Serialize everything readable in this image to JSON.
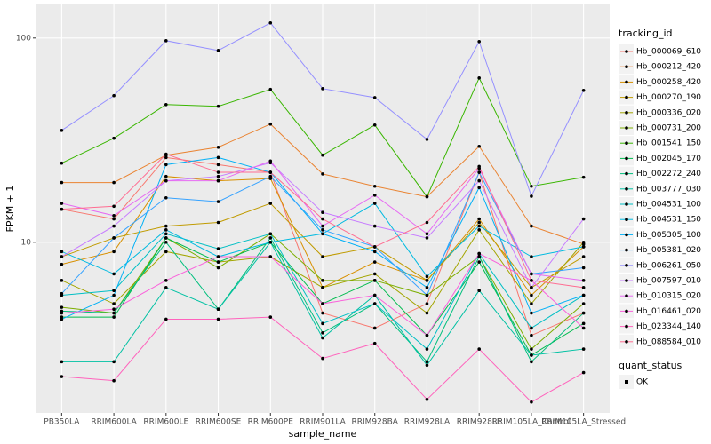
{
  "chart_data": {
    "type": "line",
    "x_label": "sample_name",
    "y_label": "FPKM + 1",
    "log_y": true,
    "grid": true,
    "legend_title": "tracking_id",
    "legend_position": "right",
    "point_legend_title": "quant_status",
    "point_legend_label": "OK",
    "point_color": "#000000",
    "ylim": [
      1.46,
      146
    ],
    "yticks": [
      10,
      100
    ],
    "categories": [
      "PB350LA",
      "RRIM600LA",
      "RRIM600LE",
      "RRIM600SE",
      "RRIM600PE",
      "RRIM901LA",
      "RRIM928BA",
      "RRIM928LA",
      "RRIM928LE",
      "RRIM105LA_Control",
      "RRIM105LA_Stressed"
    ],
    "series": [
      {
        "name": "Hb_000069_610",
        "color": "#F8766D",
        "values": [
          14.5,
          13,
          26,
          24,
          22,
          4.5,
          3.8,
          5,
          22,
          3.5,
          4.5
        ]
      },
      {
        "name": "Hb_000212_420",
        "color": "#EA8331",
        "values": [
          19.6,
          19.6,
          26.7,
          29.2,
          37.9,
          21.6,
          18.8,
          16.7,
          29.5,
          12,
          9.8
        ]
      },
      {
        "name": "Hb_000258_420",
        "color": "#D89000",
        "values": [
          7.8,
          9,
          21,
          20,
          20.5,
          6,
          8,
          6.5,
          13,
          5.5,
          9.5
        ]
      },
      {
        "name": "Hb_000270_190",
        "color": "#C09B00",
        "values": [
          8.5,
          10.5,
          12,
          12.5,
          15.5,
          8.5,
          9.5,
          6.5,
          12.5,
          6,
          8.5
        ]
      },
      {
        "name": "Hb_000336_020",
        "color": "#A3A500",
        "values": [
          6.5,
          5,
          9,
          8,
          8.5,
          6,
          7,
          4.5,
          11.5,
          5,
          10
        ]
      },
      {
        "name": "Hb_000731_200",
        "color": "#7CAE00",
        "values": [
          4.8,
          4.5,
          10.5,
          7.5,
          11,
          6.5,
          6.5,
          5.5,
          8.5,
          3,
          5
        ]
      },
      {
        "name": "Hb_001541_150",
        "color": "#39B600",
        "values": [
          24.4,
          32.3,
          47.2,
          46.3,
          56,
          26.7,
          37.5,
          16.7,
          63.7,
          18.8,
          20.8
        ]
      },
      {
        "name": "Hb_002045_170",
        "color": "#00BB4E",
        "values": [
          4.3,
          4.3,
          10.5,
          8,
          10,
          5,
          6.5,
          3.5,
          8,
          2.8,
          4
        ]
      },
      {
        "name": "Hb_002272_240",
        "color": "#00BF7D",
        "values": [
          4.6,
          4.5,
          10,
          4.7,
          10.5,
          3.6,
          5,
          2.6,
          8.5,
          2.6,
          4.5
        ]
      },
      {
        "name": "Hb_003777_030",
        "color": "#00C1A3",
        "values": [
          2.6,
          2.6,
          6,
          4.7,
          10,
          3.4,
          5.5,
          2.5,
          5.8,
          2.8,
          3
        ]
      },
      {
        "name": "Hb_004531_100",
        "color": "#00BFC4",
        "values": [
          5.5,
          5.8,
          11,
          9.3,
          11,
          4,
          5,
          3,
          8.8,
          3.8,
          5.5
        ]
      },
      {
        "name": "Hb_004531_150",
        "color": "#00BAE0",
        "values": [
          9,
          7,
          11.5,
          8.5,
          10,
          11,
          15.5,
          6.8,
          12,
          8.5,
          9.5
        ]
      },
      {
        "name": "Hb_005305_100",
        "color": "#00B0F6",
        "values": [
          4.2,
          5.5,
          24,
          26,
          22,
          11,
          9,
          6,
          18.5,
          4.5,
          5.5
        ]
      },
      {
        "name": "Hb_005381_020",
        "color": "#35A2FF",
        "values": [
          5.6,
          10.5,
          16.5,
          15.8,
          21,
          11.5,
          9.5,
          5.5,
          22,
          7,
          7.5
        ]
      },
      {
        "name": "Hb_006261_050",
        "color": "#9590FF",
        "values": [
          35.3,
          52.2,
          97,
          86.9,
          118.6,
          56.5,
          51.1,
          31.9,
          96.1,
          16.8,
          55.4
        ]
      },
      {
        "name": "Hb_007597_010",
        "color": "#C77CFF",
        "values": [
          8.5,
          12,
          20,
          21,
          24.5,
          14,
          12,
          10.5,
          20,
          6,
          13
        ]
      },
      {
        "name": "Hb_010315_020",
        "color": "#E76BF3",
        "values": [
          15.5,
          13.5,
          20,
          20,
          25,
          12,
          17,
          11,
          23,
          7,
          6.5
        ]
      },
      {
        "name": "Hb_016461_020",
        "color": "#FA62DB",
        "values": [
          4.5,
          4.7,
          6.5,
          8.5,
          8.5,
          5,
          5.5,
          3.5,
          8.8,
          6.5,
          3.8
        ]
      },
      {
        "name": "Hb_023344_140",
        "color": "#FF62BC",
        "values": [
          2.2,
          2.1,
          4.2,
          4.2,
          4.3,
          2.7,
          3.2,
          1.7,
          3,
          1.65,
          2.3
        ]
      },
      {
        "name": "Hb_088584_010",
        "color": "#FF6C91",
        "values": [
          14.5,
          15,
          27,
          22,
          22,
          13,
          9.5,
          12.5,
          23.5,
          6.5,
          6
        ]
      }
    ]
  }
}
